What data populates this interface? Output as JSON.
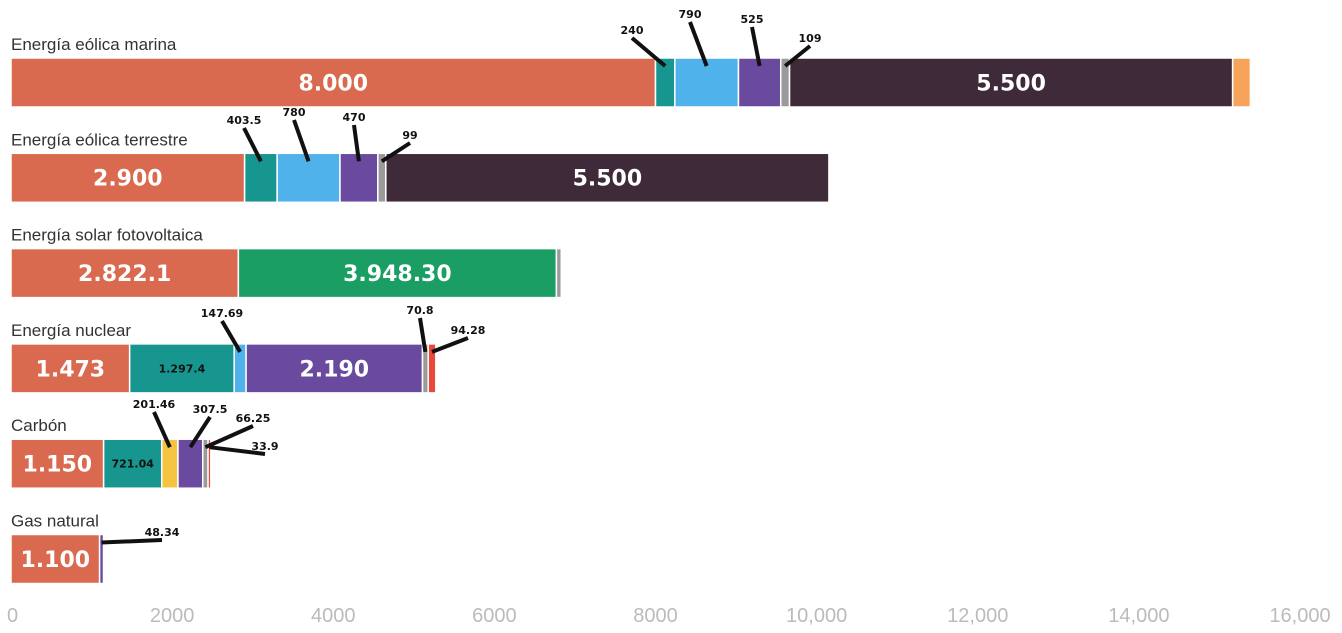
{
  "chart_data": {
    "type": "bar",
    "orientation": "horizontal",
    "stacked": true,
    "xlim": [
      0,
      16000
    ],
    "x_ticks": [
      "0",
      "2000",
      "4000",
      "6000",
      "8000",
      "10,000",
      "12,000",
      "14,000",
      "16,000"
    ],
    "x_tick_values": [
      0,
      2000,
      4000,
      6000,
      8000,
      10000,
      12000,
      14000,
      16000
    ],
    "grid": false,
    "colors": {
      "orange": "#d96a4f",
      "teal": "#17958f",
      "sky": "#4fb2ea",
      "purple": "#6a4a9f",
      "gray": "#9a9a9a",
      "dark": "#3e2a38",
      "lightorange": "#f7a35b",
      "green": "#1a9e64",
      "red": "#e8493a",
      "yellow": "#f5c33f"
    },
    "categories": [
      {
        "label": "Energía eólica marina",
        "segments": [
          {
            "value": 8000,
            "color": "orange",
            "label": "8.000",
            "label_style": "inside"
          },
          {
            "value": 240,
            "color": "teal",
            "label": "240",
            "label_style": "callout"
          },
          {
            "value": 790,
            "color": "sky",
            "label": "790",
            "label_style": "callout"
          },
          {
            "value": 525,
            "color": "purple",
            "label": "525",
            "label_style": "callout"
          },
          {
            "value": 109,
            "color": "gray",
            "label": "109",
            "label_style": "callout"
          },
          {
            "value": 5500,
            "color": "dark",
            "label": "5.500",
            "label_style": "inside"
          },
          {
            "value": 220,
            "color": "lightorange"
          }
        ]
      },
      {
        "label": "Energía eólica terrestre",
        "segments": [
          {
            "value": 2900,
            "color": "orange",
            "label": "2.900",
            "label_style": "inside"
          },
          {
            "value": 403.5,
            "color": "teal",
            "label": "403.5",
            "label_style": "callout"
          },
          {
            "value": 780,
            "color": "sky",
            "label": "780",
            "label_style": "callout"
          },
          {
            "value": 470,
            "color": "purple",
            "label": "470",
            "label_style": "callout"
          },
          {
            "value": 99,
            "color": "gray",
            "label": "99",
            "label_style": "callout"
          },
          {
            "value": 5500,
            "color": "dark",
            "label": "5.500",
            "label_style": "inside"
          }
        ]
      },
      {
        "label": "Energía solar fotovoltaica",
        "segments": [
          {
            "value": 2822.1,
            "color": "orange",
            "label": "2.822.1",
            "label_style": "inside"
          },
          {
            "value": 3948.3,
            "color": "green",
            "label": "3.948.30",
            "label_style": "inside"
          },
          {
            "value": 60,
            "color": "gray"
          }
        ]
      },
      {
        "label": "Energía nuclear",
        "segments": [
          {
            "value": 1473,
            "color": "orange",
            "label": "1.473",
            "label_style": "inside"
          },
          {
            "value": 1297.4,
            "color": "teal",
            "label": "1.297.4",
            "label_style": "inside-small"
          },
          {
            "value": 147.69,
            "color": "sky",
            "label": "147.69",
            "label_style": "callout"
          },
          {
            "value": 2190,
            "color": "purple",
            "label": "2.190",
            "label_style": "inside"
          },
          {
            "value": 70.8,
            "color": "gray",
            "label": "70.8",
            "label_style": "callout"
          },
          {
            "value": 94.28,
            "color": "red",
            "label": "94.28",
            "label_style": "callout"
          }
        ]
      },
      {
        "label": "Carbón",
        "segments": [
          {
            "value": 1150,
            "color": "orange",
            "label": "1.150",
            "label_style": "inside"
          },
          {
            "value": 721.04,
            "color": "teal",
            "label": "721.04",
            "label_style": "inside-small"
          },
          {
            "value": 201.46,
            "color": "yellow",
            "label": "201.46",
            "label_style": "callout"
          },
          {
            "value": 307.5,
            "color": "purple",
            "label": "307.5",
            "label_style": "callout"
          },
          {
            "value": 66.25,
            "color": "gray",
            "label": "66.25",
            "label_style": "callout"
          },
          {
            "value": 33.9,
            "color": "red",
            "label": "33.9",
            "label_style": "callout"
          }
        ]
      },
      {
        "label": "Gas natural",
        "segments": [
          {
            "value": 1100,
            "color": "orange",
            "label": "1.100",
            "label_style": "inside"
          },
          {
            "value": 48.34,
            "color": "purple",
            "label": "48.34",
            "label_style": "callout"
          }
        ]
      }
    ]
  }
}
